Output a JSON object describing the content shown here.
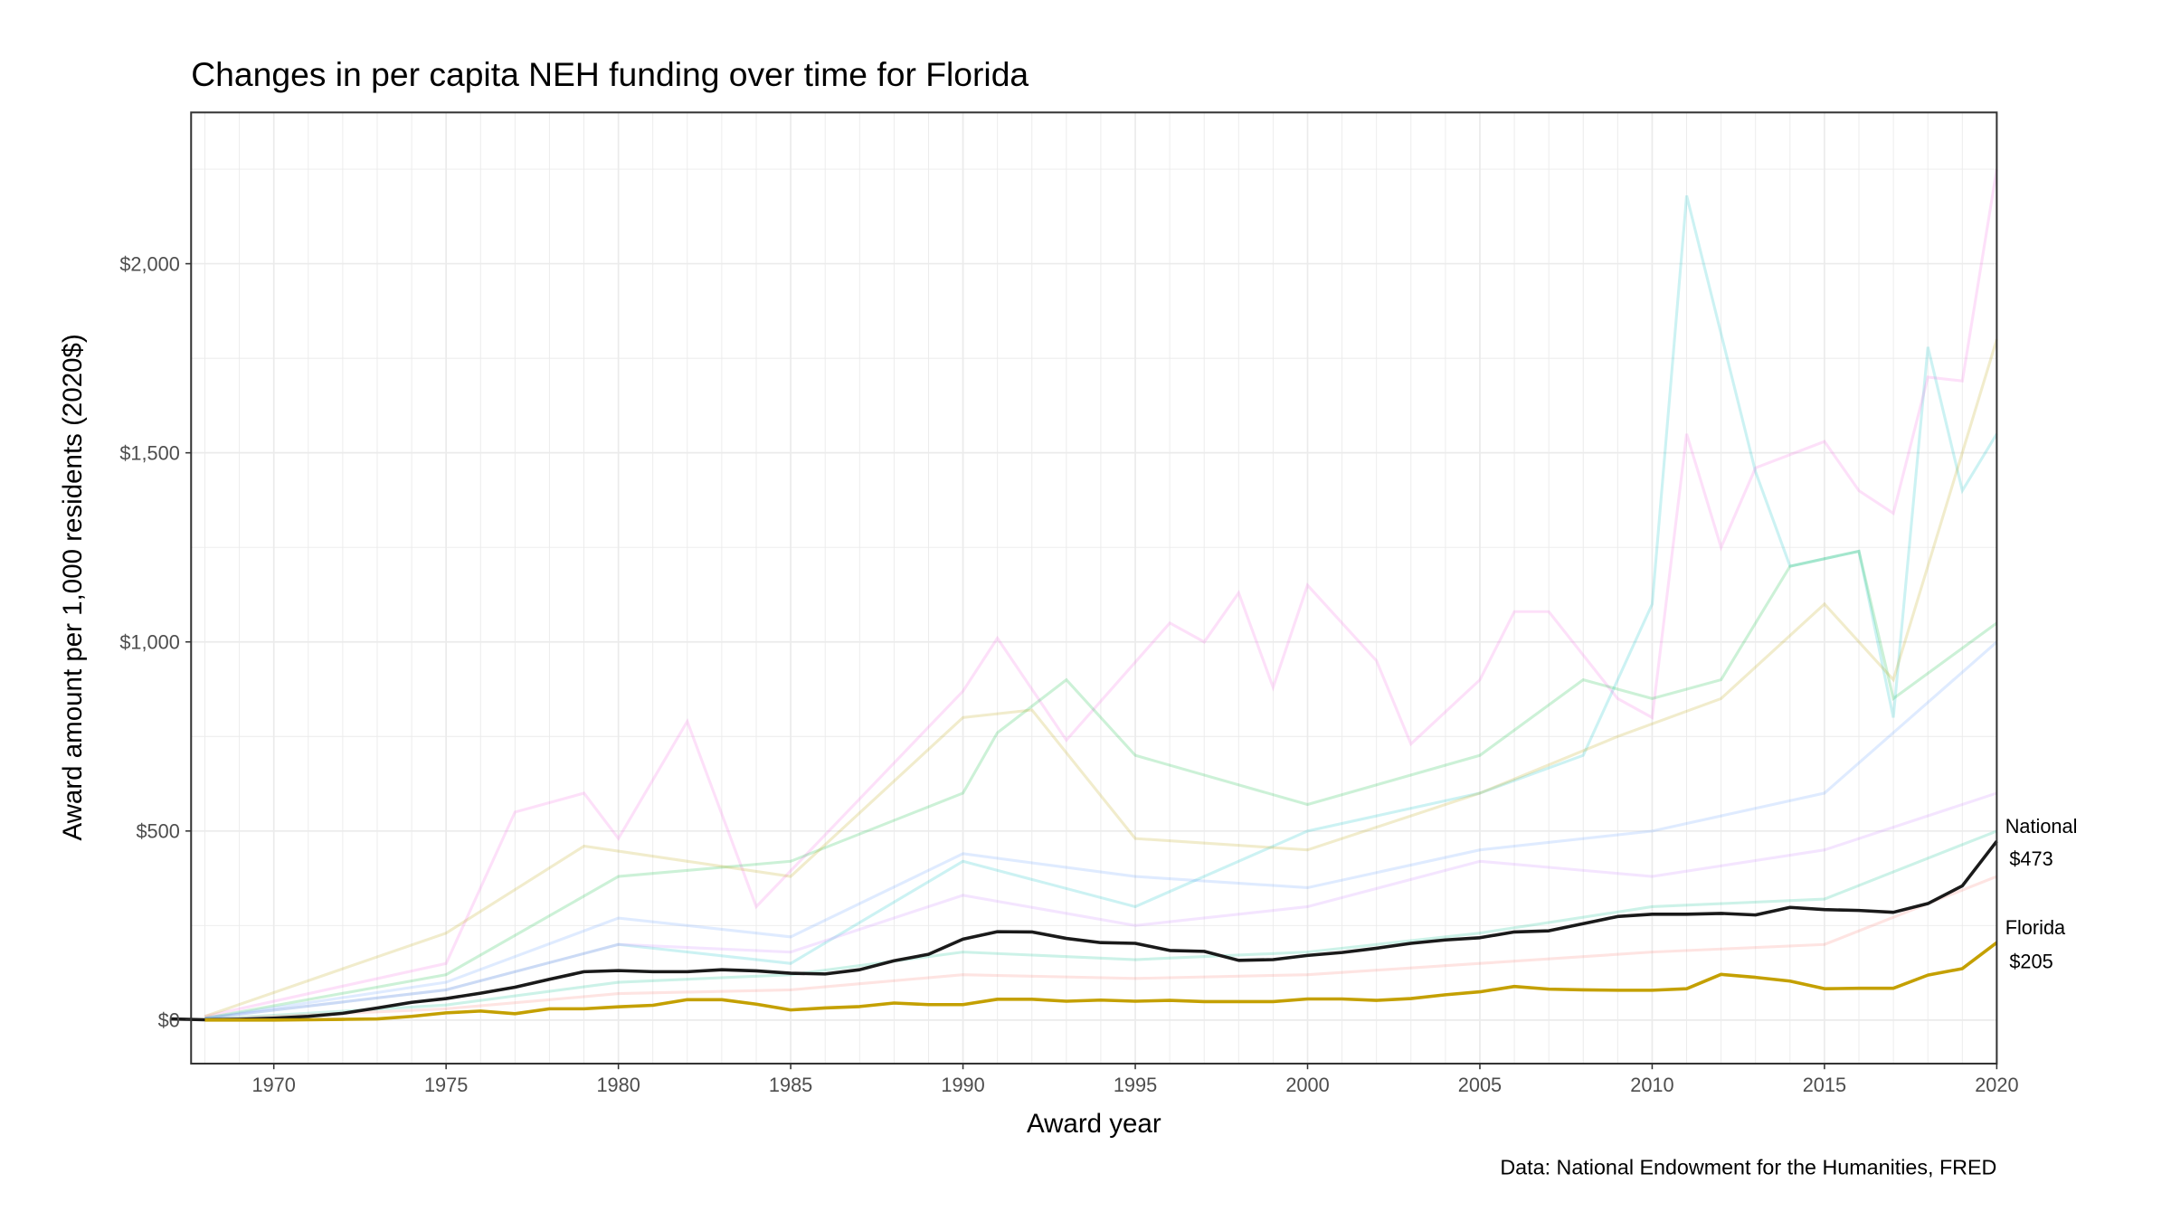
{
  "chart_data": {
    "type": "line",
    "title": "Changes in per capita NEH funding over time for Florida",
    "xlabel": "Award year",
    "ylabel": "Award amount per 1,000 residents (2020$)",
    "caption": "Data: National Endowment for the Humanities, FRED",
    "xlim": [
      1967.6,
      2020
    ],
    "ylim": [
      -115,
      2400
    ],
    "x_ticks": [
      "1970",
      "1975",
      "1980",
      "1985",
      "1990",
      "1995",
      "2000",
      "2005",
      "2010",
      "2015",
      "2020"
    ],
    "y_ticks": [
      {
        "value": 0,
        "label": "$0"
      },
      {
        "value": 500,
        "label": "$500"
      },
      {
        "value": 1000,
        "label": "$1,000"
      },
      {
        "value": 1500,
        "label": "$1,500"
      },
      {
        "value": 2000,
        "label": "$2,000"
      }
    ],
    "grid": true,
    "highlight_series": [
      {
        "name": "National",
        "end_label": "$473",
        "color": "#1a1a1a",
        "x": [
          1967,
          1968,
          1969,
          1970,
          1971,
          1972,
          1973,
          1974,
          1975,
          1976,
          1977,
          1978,
          1979,
          1980,
          1981,
          1982,
          1983,
          1984,
          1985,
          1986,
          1987,
          1988,
          1989,
          1990,
          1991,
          1992,
          1993,
          1994,
          1995,
          1996,
          1997,
          1998,
          1999,
          2000,
          2001,
          2002,
          2003,
          2004,
          2005,
          2006,
          2007,
          2008,
          2009,
          2010,
          2011,
          2012,
          2013,
          2014,
          2015,
          2016,
          2017,
          2018,
          2019,
          2020
        ],
        "y": [
          3,
          1,
          2,
          5,
          10,
          18,
          32,
          47,
          57,
          71,
          87,
          108,
          128,
          131,
          128,
          128,
          133,
          130,
          124,
          122,
          133,
          157,
          174,
          214,
          234,
          233,
          216,
          205,
          203,
          184,
          182,
          158,
          160,
          171,
          179,
          190,
          203,
          212,
          218,
          233,
          236,
          255,
          274,
          280,
          280,
          282,
          278,
          298,
          292,
          290,
          285,
          308,
          355,
          473
        ]
      },
      {
        "name": "Florida",
        "end_label": "$205",
        "color": "#C4A000",
        "x": [
          1968,
          1969,
          1970,
          1971,
          1972,
          1973,
          1974,
          1975,
          1976,
          1977,
          1978,
          1979,
          1980,
          1981,
          1982,
          1983,
          1984,
          1985,
          1986,
          1987,
          1988,
          1989,
          1990,
          1991,
          1992,
          1993,
          1994,
          1995,
          1996,
          1997,
          1998,
          1999,
          2000,
          2001,
          2002,
          2003,
          2004,
          2005,
          2006,
          2007,
          2008,
          2009,
          2010,
          2011,
          2012,
          2013,
          2014,
          2015,
          2016,
          2017,
          2018,
          2019,
          2020
        ],
        "y": [
          0,
          0,
          0,
          1,
          2,
          3,
          10,
          19,
          24,
          17,
          30,
          30,
          35,
          39,
          54,
          54,
          42,
          27,
          32,
          36,
          45,
          41,
          41,
          55,
          55,
          50,
          53,
          50,
          52,
          49,
          49,
          49,
          56,
          56,
          52,
          57,
          67,
          75,
          89,
          82,
          80,
          79,
          79,
          83,
          121,
          113,
          103,
          83,
          84,
          84,
          119,
          136,
          205
        ]
      }
    ],
    "background_series_note_color_opacity": 0.2,
    "background_series": [
      {
        "color": "#00BFC4",
        "x": [
          1968,
          1975,
          1980,
          1985,
          1990,
          1995,
          2000,
          2005,
          2008,
          2010,
          2011,
          2013,
          2014,
          2016,
          2017,
          2018,
          2019,
          2020
        ],
        "y": [
          5,
          80,
          200,
          150,
          420,
          300,
          500,
          600,
          700,
          1100,
          2180,
          1450,
          1200,
          1240,
          800,
          1780,
          1400,
          1550
        ]
      },
      {
        "color": "#F564E3",
        "x": [
          1968,
          1975,
          1977,
          1979,
          1980,
          1982,
          1984,
          1990,
          1991,
          1993,
          1996,
          1997,
          1998,
          1999,
          2000,
          2002,
          2003,
          2005,
          2006,
          2007,
          2009,
          2010,
          2011,
          2012,
          2013,
          2015,
          2016,
          2017,
          2018,
          2019,
          2020
        ],
        "y": [
          10,
          150,
          550,
          600,
          480,
          790,
          300,
          870,
          1010,
          740,
          1050,
          1000,
          1130,
          880,
          1150,
          950,
          730,
          900,
          1080,
          1080,
          850,
          800,
          1550,
          1250,
          1460,
          1530,
          1400,
          1340,
          1700,
          1690,
          2250
        ]
      },
      {
        "color": "#00BA38",
        "x": [
          1968,
          1975,
          1980,
          1985,
          1990,
          1991,
          1993,
          1995,
          2000,
          2005,
          2008,
          2010,
          2012,
          2014,
          2016,
          2017,
          2020
        ],
        "y": [
          5,
          120,
          380,
          420,
          600,
          760,
          900,
          700,
          570,
          700,
          900,
          850,
          900,
          1200,
          1240,
          850,
          1050
        ]
      },
      {
        "color": "#B79F00",
        "x": [
          1968,
          1975,
          1979,
          1985,
          1990,
          1992,
          1995,
          2000,
          2005,
          2009,
          2012,
          2015,
          2017,
          2020
        ],
        "y": [
          10,
          230,
          460,
          380,
          800,
          820,
          480,
          450,
          600,
          750,
          850,
          1100,
          900,
          1800
        ]
      },
      {
        "color": "#619CFF",
        "x": [
          1968,
          1975,
          1980,
          1985,
          1990,
          1995,
          2000,
          2005,
          2010,
          2015,
          2020
        ],
        "y": [
          5,
          100,
          270,
          220,
          440,
          380,
          350,
          450,
          500,
          600,
          1000
        ]
      },
      {
        "color": "#C77CFF",
        "x": [
          1968,
          1975,
          1980,
          1985,
          1990,
          1995,
          2000,
          2005,
          2010,
          2015,
          2020
        ],
        "y": [
          5,
          80,
          200,
          180,
          330,
          250,
          300,
          420,
          380,
          450,
          600
        ]
      },
      {
        "color": "#00C08B",
        "x": [
          1968,
          1975,
          1980,
          1985,
          1990,
          1995,
          2000,
          2005,
          2010,
          2015,
          2020
        ],
        "y": [
          2,
          40,
          100,
          120,
          180,
          160,
          180,
          230,
          300,
          320,
          500
        ]
      },
      {
        "color": "#F8766D",
        "x": [
          1968,
          1975,
          1980,
          1985,
          1990,
          1995,
          2000,
          2005,
          2010,
          2015,
          2020
        ],
        "y": [
          2,
          30,
          70,
          80,
          120,
          110,
          120,
          150,
          180,
          200,
          380
        ]
      }
    ]
  }
}
